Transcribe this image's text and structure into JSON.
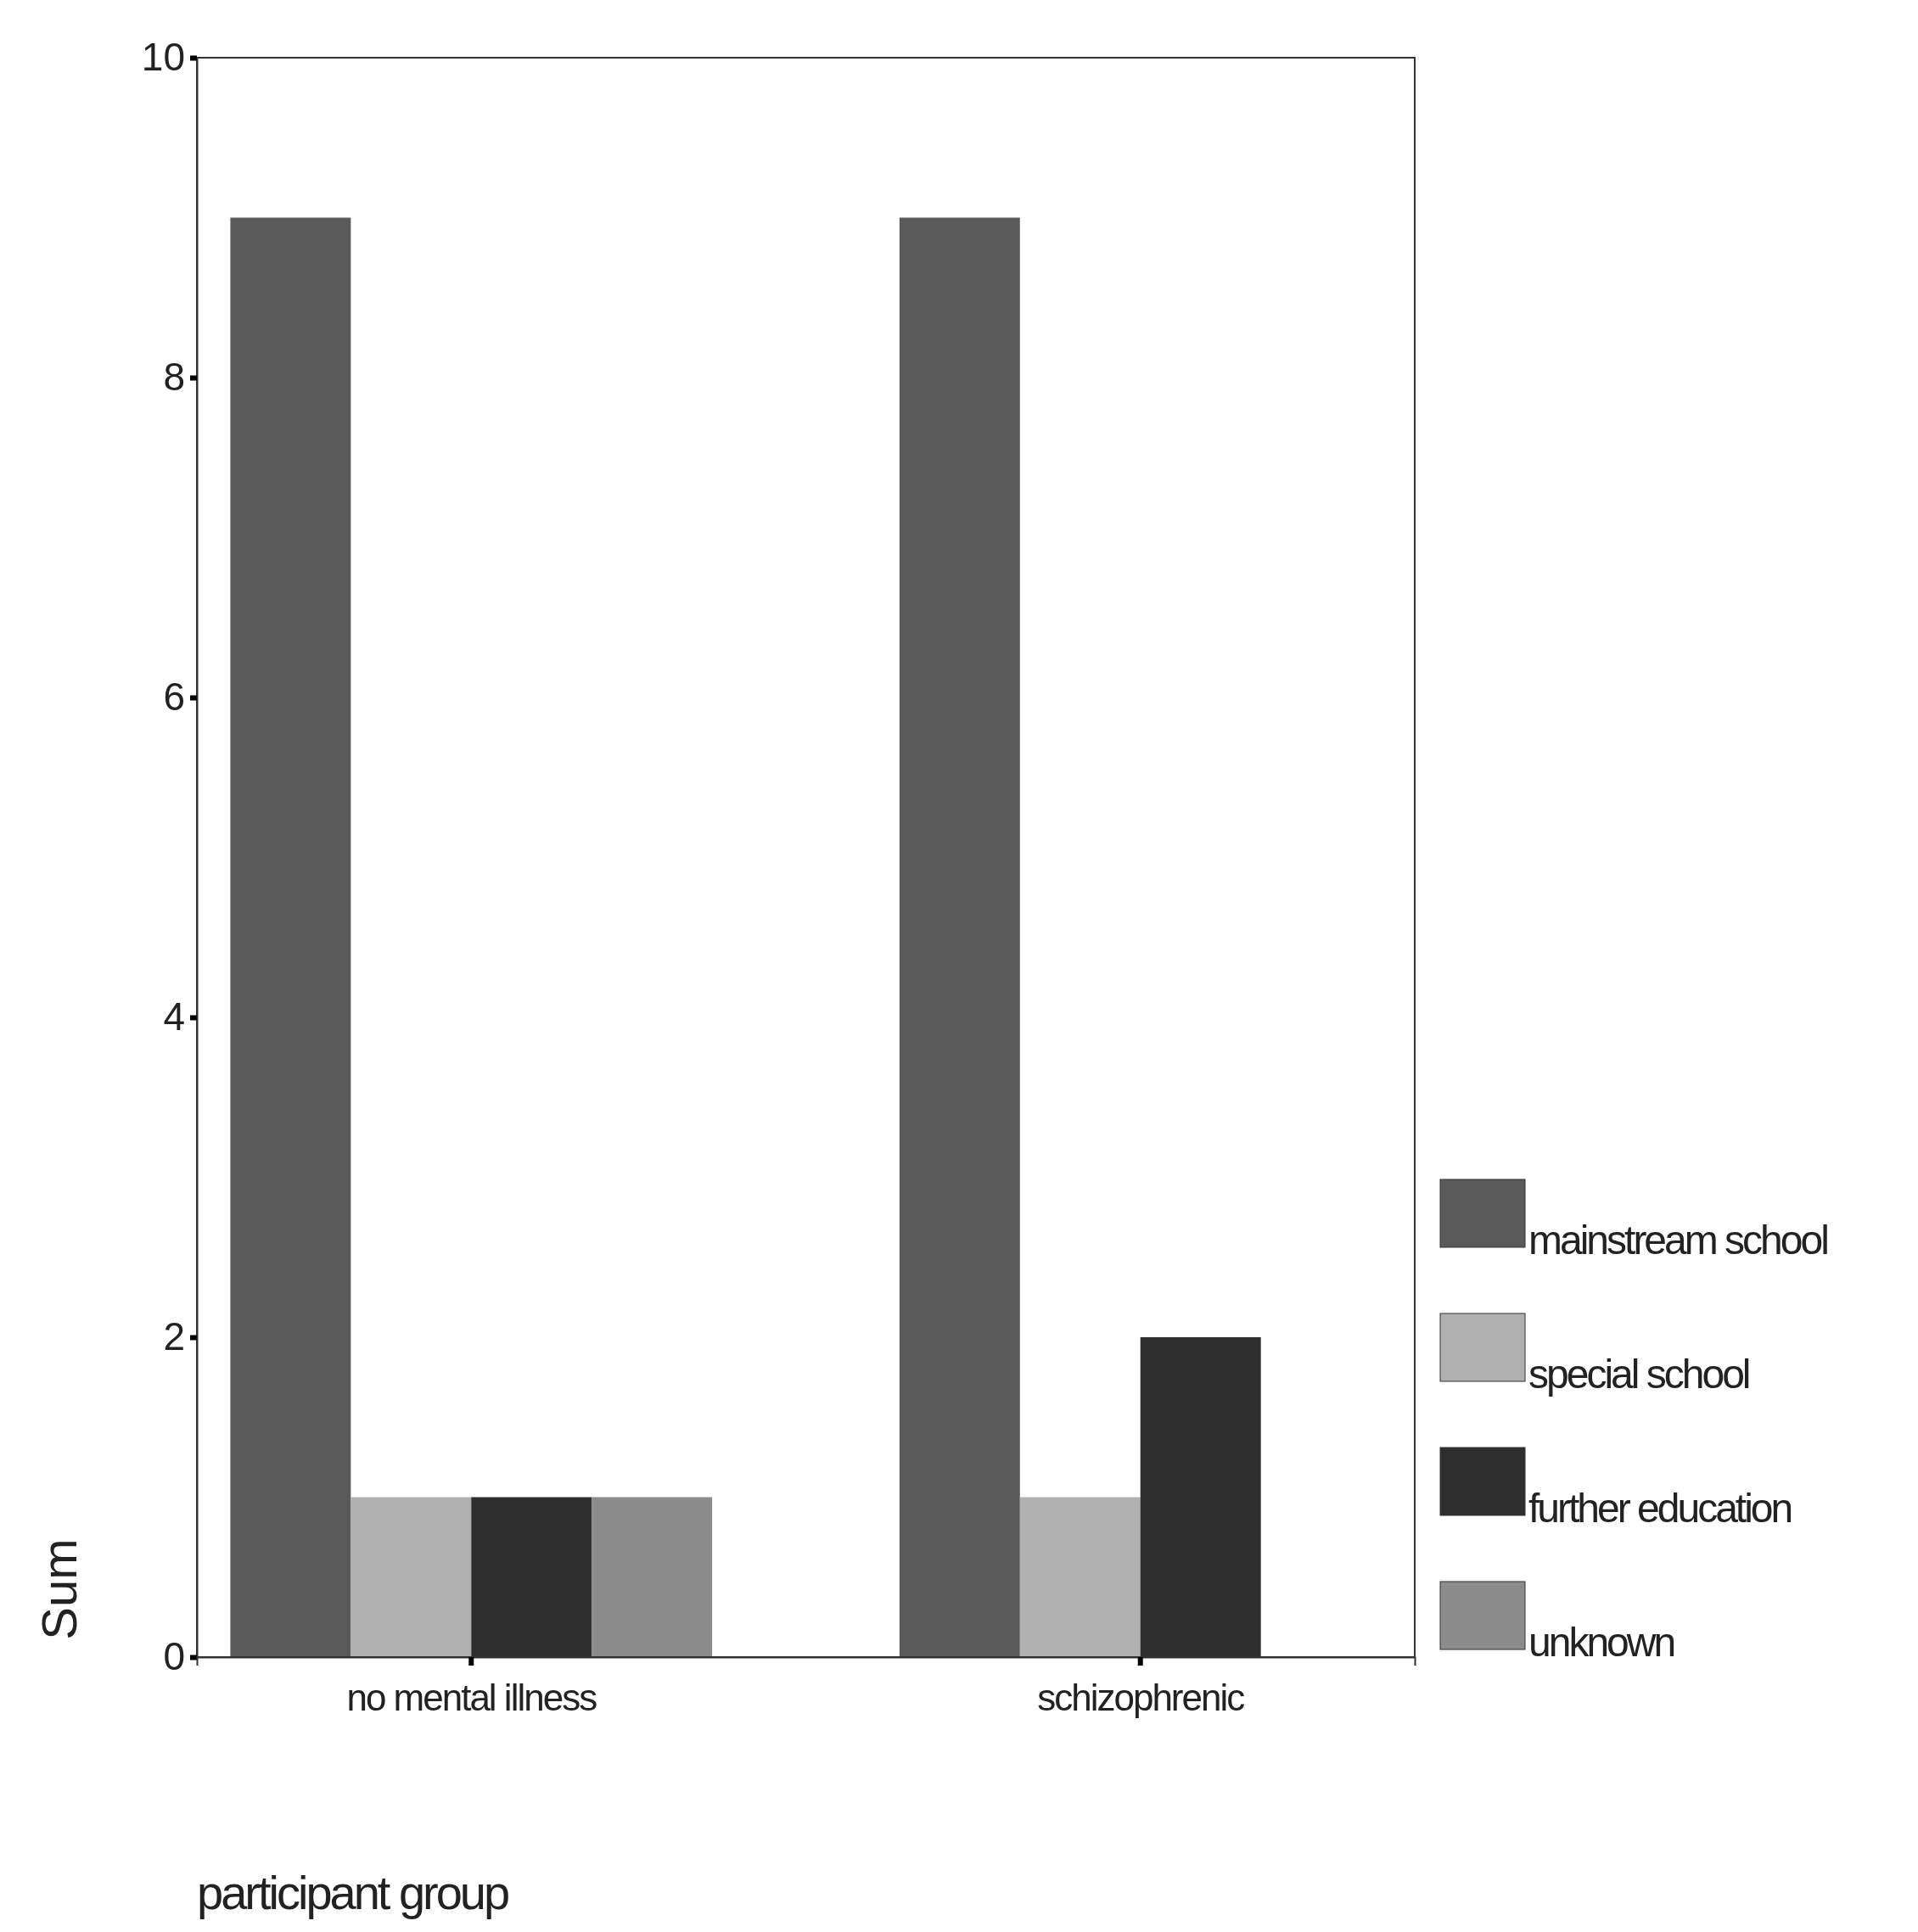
{
  "chart_data": {
    "type": "bar",
    "xlabel": "participant group",
    "ylabel": "Sum",
    "categories": [
      "no mental illness",
      "schizophrenic"
    ],
    "series": [
      {
        "name": "mainstream school",
        "color": "#5a5a5a",
        "values": [
          9,
          9
        ]
      },
      {
        "name": "special school",
        "color": "#b0b0b0",
        "values": [
          1,
          1
        ]
      },
      {
        "name": "further education",
        "color": "#2e2e2e",
        "values": [
          1,
          2
        ]
      },
      {
        "name": "unknown",
        "color": "#8c8c8c",
        "values": [
          1,
          0
        ]
      }
    ],
    "ylim": [
      0,
      10
    ],
    "yticks": [
      0,
      2,
      4,
      6,
      8,
      10
    ],
    "grid": false,
    "legend": "bottom right"
  }
}
